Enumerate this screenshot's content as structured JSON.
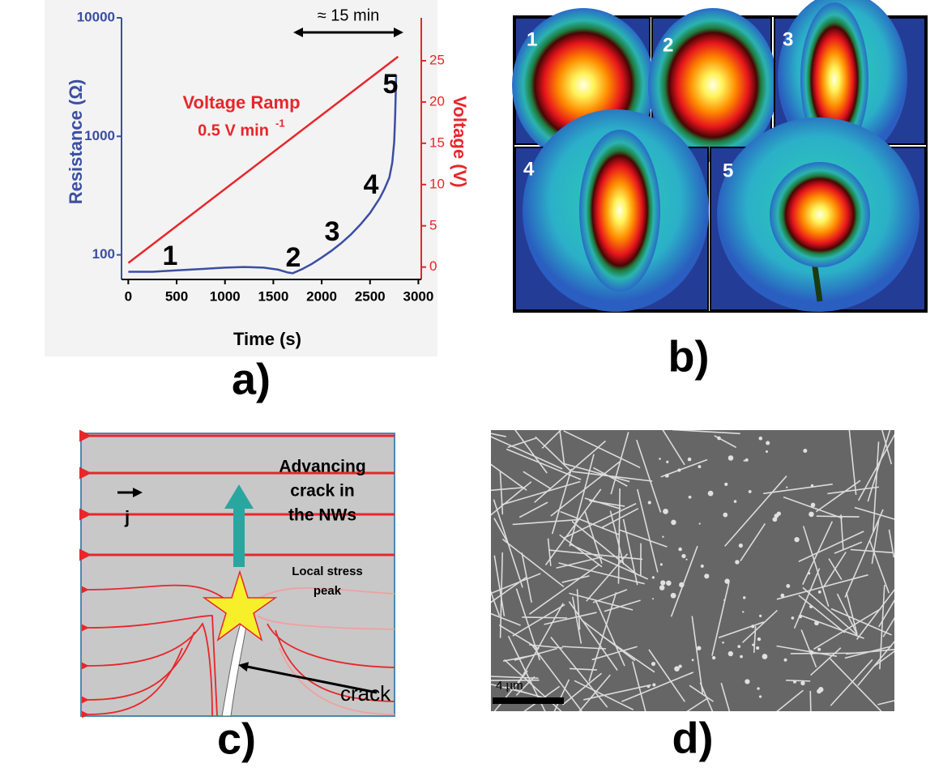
{
  "chart_data": {
    "type": "line",
    "xlabel": "Time (s)",
    "ylabel": "Resistance (Ω)",
    "y2label": "Voltage (V)",
    "xlim": [
      -70,
      3030
    ],
    "xticks": [
      0,
      500,
      1000,
      1500,
      2000,
      2500,
      3000
    ],
    "ylim": [
      62,
      10000
    ],
    "yticks": [
      100,
      1000,
      10000
    ],
    "yscale": "log",
    "y2lim": [
      -1.5,
      30.2
    ],
    "y2ticks": [
      0,
      5,
      10,
      15,
      20,
      25
    ],
    "series": [
      {
        "color": "#3b4ea3",
        "x": [
          0,
          250,
          500,
          750,
          1000,
          1200,
          1400,
          1550,
          1650,
          1700,
          1800,
          1900,
          2000,
          2100,
          2200,
          2300,
          2400,
          2500,
          2600,
          2650,
          2700,
          2730,
          2750,
          2760,
          2770
        ],
        "values": [
          72,
          72,
          74,
          76,
          78,
          79,
          78,
          75,
          71,
          70,
          76,
          84,
          95,
          108,
          125,
          148,
          180,
          225,
          300,
          360,
          450,
          600,
          900,
          1500,
          3300
        ]
      },
      {
        "color": "#e8262b",
        "axis": "y2",
        "x": [
          0,
          2790
        ],
        "values": [
          0.5,
          25.5
        ]
      }
    ],
    "annotations": {
      "ramp": "Voltage Ramp",
      "rate": "0.5 V min",
      "rate_exp": "-1",
      "span": "≈ 15 min",
      "points": [
        "1",
        "2",
        "3",
        "4",
        "5"
      ]
    }
  },
  "panel_labels": [
    "a)",
    "b)",
    "c)",
    "d)"
  ],
  "panel_b": {
    "frame_labels": [
      "1",
      "2",
      "3",
      "4",
      "5"
    ]
  },
  "panel_c": {
    "j": "j",
    "advancing": [
      "Advancing",
      "crack in",
      "the NWs"
    ],
    "stress": [
      "Local stress",
      "peak"
    ],
    "crack": "crack"
  },
  "panel_d": {
    "scale_bar": "4 µm"
  }
}
